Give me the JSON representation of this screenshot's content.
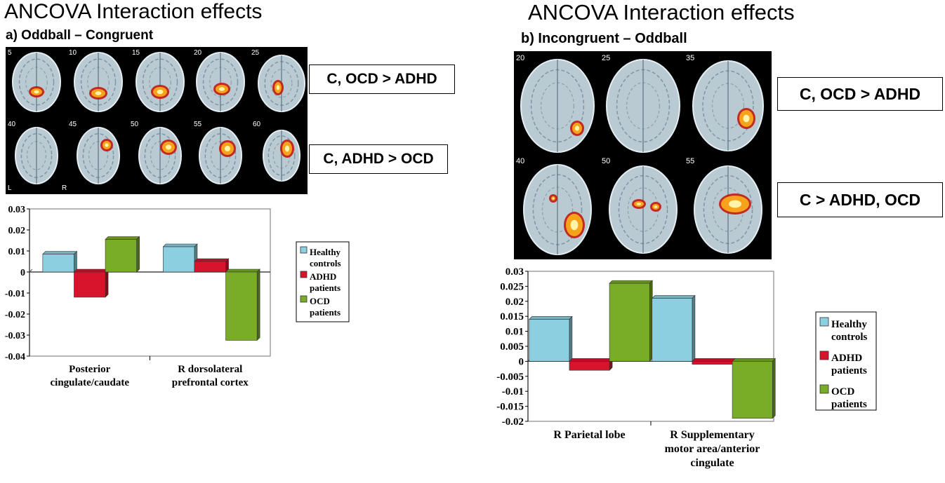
{
  "panel_a": {
    "main_title": "ANCOVA Interaction effects",
    "subtitle": "a)   Oddball –  Congruent",
    "slice_labels": [
      "5",
      "10",
      "15",
      "20",
      "25",
      "40",
      "45",
      "50",
      "55",
      "60"
    ],
    "orientation_left": "L",
    "orientation_right": "R",
    "contrast_labels": [
      "C, OCD > ADHD",
      "C, ADHD > OCD"
    ]
  },
  "panel_b": {
    "main_title": "ANCOVA Interaction effects",
    "subtitle": "b) Incongruent – Oddball",
    "slice_labels": [
      "20",
      "25",
      "35",
      "40",
      "50",
      "55"
    ],
    "contrast_labels": [
      "C, OCD > ADHD",
      "C > ADHD, OCD"
    ]
  },
  "colors": {
    "healthy": "#8ccfe0",
    "adhd": "#d8142c",
    "ocd": "#79ad27"
  },
  "chart_data": [
    {
      "type": "bar",
      "categories": [
        "Posterior cingulate/caudate",
        "R dorsolateral prefrontal cortex"
      ],
      "category_lines": [
        [
          "Posterior",
          "cingulate/caudate"
        ],
        [
          "R dorsolateral",
          "prefrontal cortex"
        ]
      ],
      "series": [
        {
          "name": "Healthy controls",
          "name_lines": [
            "Healthy",
            "controls"
          ],
          "values": [
            0.0085,
            0.012
          ]
        },
        {
          "name": "ADHD patients",
          "name_lines": [
            "ADHD",
            "patients"
          ],
          "values": [
            -0.012,
            0.005
          ]
        },
        {
          "name": "OCD patients",
          "name_lines": [
            "OCD",
            "patients"
          ],
          "values": [
            0.0155,
            -0.0325
          ]
        }
      ],
      "ylim": [
        -0.04,
        0.03
      ],
      "yticks": [
        "0.03",
        "0.02",
        "0.01",
        "0",
        "-0.01",
        "-0.02",
        "-0.03",
        "-0.04"
      ],
      "legend_position": "right",
      "grid": false
    },
    {
      "type": "bar",
      "categories": [
        "R Parietal lobe",
        "R Supplementary motor area/anterior cingulate"
      ],
      "category_lines": [
        [
          "R Parietal lobe"
        ],
        [
          "R Supplementary",
          "motor area/anterior",
          "cingulate"
        ]
      ],
      "series": [
        {
          "name": "Healthy controls",
          "name_lines": [
            "Healthy",
            "controls"
          ],
          "values": [
            0.014,
            0.021
          ]
        },
        {
          "name": "ADHD patients",
          "name_lines": [
            "ADHD",
            "patients"
          ],
          "values": [
            -0.003,
            -0.001
          ]
        },
        {
          "name": "OCD patients",
          "name_lines": [
            "OCD",
            "patients"
          ],
          "values": [
            0.026,
            -0.019
          ]
        }
      ],
      "ylim": [
        -0.02,
        0.03
      ],
      "yticks": [
        "0.03",
        "0.025",
        "0.02",
        "0.015",
        "0.01",
        "0.005",
        "0",
        "-0.005",
        "-0.01",
        "-0.015",
        "-0.02"
      ],
      "legend_position": "right",
      "grid": false
    }
  ]
}
